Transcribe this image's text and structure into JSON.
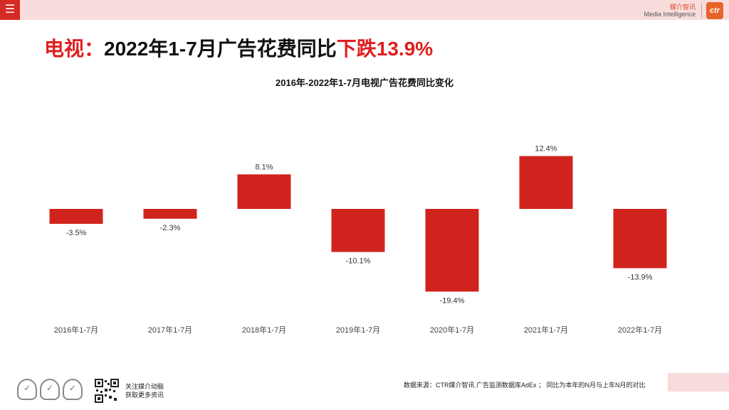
{
  "header": {
    "menu_glyph": "☰",
    "brand_cn": "媒介智讯",
    "brand_en": "Media Intelligence",
    "brand_logo": "ctr"
  },
  "headline": {
    "part1": "电视：",
    "part2": "2022年1-7月广告花费同比",
    "part3": "下跌13.9%"
  },
  "footer": {
    "follow_line1": "关注媒介动脑",
    "follow_line2": "获取更多资讯",
    "source": "数据来源：CTR媒介智讯 广告监测数据库AdEx ； 同比为本年的N月与上年N月的对比"
  },
  "colors": {
    "bar": "#d0231e",
    "accent": "#d62b24",
    "pink": "#f8dcdc"
  },
  "chart_data": {
    "type": "bar",
    "title": "2016年-2022年1-7月电视广告花费同比变化",
    "categories": [
      "2016年1-7月",
      "2017年1-7月",
      "2018年1-7月",
      "2019年1-7月",
      "2020年1-7月",
      "2021年1-7月",
      "2022年1-7月"
    ],
    "values": [
      -3.5,
      -2.3,
      8.1,
      -10.1,
      -19.4,
      12.4,
      -13.9
    ],
    "labels": [
      "-3.5%",
      "-2.3%",
      "8.1%",
      "-10.1%",
      "-19.4%",
      "12.4%",
      "-13.9%"
    ],
    "unit": "%",
    "xlabel": "",
    "ylabel": "",
    "ylim": [
      -20,
      13
    ],
    "grid": false,
    "legend": false
  }
}
